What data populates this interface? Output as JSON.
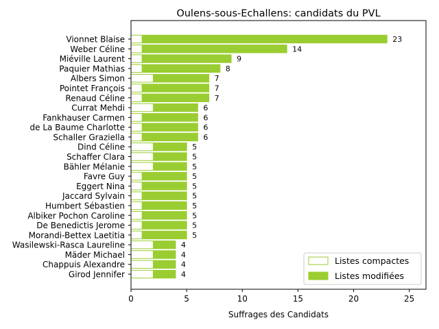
{
  "chart_data": {
    "type": "bar",
    "orientation": "horizontal",
    "stacked": true,
    "title": "Oulens-sous-Echallens: candidats du PVL",
    "xlabel": "Suffrages des Candidats",
    "ylabel": "",
    "xlim": [
      0,
      26.5
    ],
    "xticks": [
      0,
      5,
      10,
      15,
      20,
      25
    ],
    "grid": false,
    "legend_position": "lower-right",
    "categories": [
      "Vionnet Blaise",
      "Weber Céline",
      "Miéville Laurent",
      "Paquier Mathias",
      "Albers Simon",
      "Pointet François",
      "Renaud Céline",
      "Currat Mehdi",
      "Fankhauser Carmen",
      "de La Baume Charlotte",
      "Schaller Graziella",
      "Dind Céline",
      "Schaffer Clara",
      "Bähler Mélanie",
      "Favre Guy",
      "Eggert Nina",
      "Jaccard Sylvain",
      "Humbert Sébastien",
      "Albiker Pochon Caroline",
      "De Benedictis Jerome",
      "Morandi-Bettex Laetitia",
      "Wasilewski-Rasca Laureline",
      "Mäder Michael",
      "Chappuis Alexandre",
      "Girod Jennifer"
    ],
    "series": [
      {
        "name": "Listes compactes",
        "color": "#9acd32",
        "fill": "#ffffff",
        "values": [
          1,
          1,
          1,
          1,
          2,
          1,
          1,
          2,
          1,
          1,
          1,
          2,
          2,
          2,
          1,
          1,
          1,
          1,
          1,
          1,
          1,
          2,
          2,
          2,
          2
        ]
      },
      {
        "name": "Listes modifiées",
        "color": "#9acd32",
        "fill": "#9acd32",
        "values": [
          22,
          13,
          8,
          7,
          5,
          6,
          6,
          4,
          5,
          5,
          5,
          3,
          3,
          3,
          4,
          4,
          4,
          4,
          4,
          4,
          4,
          2,
          2,
          2,
          2
        ]
      }
    ],
    "totals": [
      23,
      14,
      9,
      8,
      7,
      7,
      7,
      6,
      6,
      6,
      6,
      5,
      5,
      5,
      5,
      5,
      5,
      5,
      5,
      5,
      5,
      4,
      4,
      4,
      4
    ]
  }
}
